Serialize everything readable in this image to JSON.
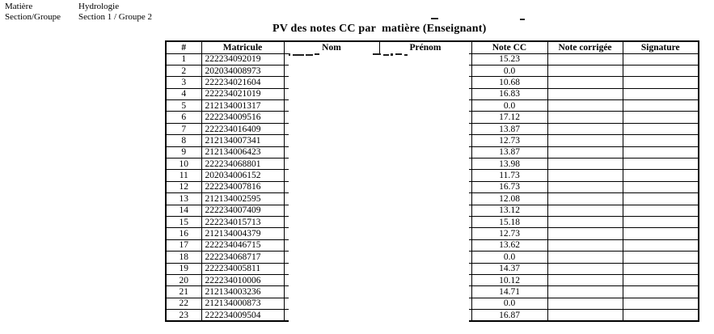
{
  "info": {
    "matiere_label": "Matière",
    "matiere_value": "Hydrologie",
    "section_label": "Section/Groupe",
    "section_value": "Section 1 / Groupe 2"
  },
  "title": "PV des notes CC par  matière (Enseignant)",
  "table": {
    "headers": [
      "#",
      "Matricule",
      "Nom",
      "Prénom",
      "Note CC",
      "Note corrigée",
      "Signature"
    ],
    "rows": [
      {
        "n": "1",
        "matricule": "222234092019",
        "nom": "",
        "prenom": "",
        "note_cc": "15.23",
        "note_corrigee": "",
        "signature": ""
      },
      {
        "n": "2",
        "matricule": "202034008973",
        "nom": "",
        "prenom": "",
        "note_cc": "0.0",
        "note_corrigee": "",
        "signature": ""
      },
      {
        "n": "3",
        "matricule": "222234021604",
        "nom": "",
        "prenom": "",
        "note_cc": "10.68",
        "note_corrigee": "",
        "signature": ""
      },
      {
        "n": "4",
        "matricule": "222234021019",
        "nom": "",
        "prenom": "",
        "note_cc": "16.83",
        "note_corrigee": "",
        "signature": ""
      },
      {
        "n": "5",
        "matricule": "212134001317",
        "nom": "",
        "prenom": "",
        "note_cc": "0.0",
        "note_corrigee": "",
        "signature": ""
      },
      {
        "n": "6",
        "matricule": "222234009516",
        "nom": "",
        "prenom": "",
        "note_cc": "17.12",
        "note_corrigee": "",
        "signature": ""
      },
      {
        "n": "7",
        "matricule": "222234016409",
        "nom": "",
        "prenom": "",
        "note_cc": "13.87",
        "note_corrigee": "",
        "signature": ""
      },
      {
        "n": "8",
        "matricule": "212134007341",
        "nom": "",
        "prenom": "",
        "note_cc": "12.73",
        "note_corrigee": "",
        "signature": ""
      },
      {
        "n": "9",
        "matricule": "212134006423",
        "nom": "",
        "prenom": "",
        "note_cc": "13.87",
        "note_corrigee": "",
        "signature": ""
      },
      {
        "n": "10",
        "matricule": "222234068801",
        "nom": "",
        "prenom": "",
        "note_cc": "13.98",
        "note_corrigee": "",
        "signature": ""
      },
      {
        "n": "11",
        "matricule": "202034006152",
        "nom": "",
        "prenom": "",
        "note_cc": "11.73",
        "note_corrigee": "",
        "signature": ""
      },
      {
        "n": "12",
        "matricule": "222234007816",
        "nom": "",
        "prenom": "",
        "note_cc": "16.73",
        "note_corrigee": "",
        "signature": ""
      },
      {
        "n": "13",
        "matricule": "212134002595",
        "nom": "",
        "prenom": "",
        "note_cc": "12.08",
        "note_corrigee": "",
        "signature": ""
      },
      {
        "n": "14",
        "matricule": "222234007409",
        "nom": "",
        "prenom": "",
        "note_cc": "13.12",
        "note_corrigee": "",
        "signature": ""
      },
      {
        "n": "15",
        "matricule": "222234015713",
        "nom": "",
        "prenom": "",
        "note_cc": "15.18",
        "note_corrigee": "",
        "signature": ""
      },
      {
        "n": "16",
        "matricule": "212134004379",
        "nom": "",
        "prenom": "",
        "note_cc": "12.73",
        "note_corrigee": "",
        "signature": ""
      },
      {
        "n": "17",
        "matricule": "222234046715",
        "nom": "",
        "prenom": "",
        "note_cc": "13.62",
        "note_corrigee": "",
        "signature": ""
      },
      {
        "n": "18",
        "matricule": "222234068717",
        "nom": "",
        "prenom": "",
        "note_cc": "0.0",
        "note_corrigee": "",
        "signature": ""
      },
      {
        "n": "19",
        "matricule": "222234005811",
        "nom": "",
        "prenom": "",
        "note_cc": "14.37",
        "note_corrigee": "",
        "signature": ""
      },
      {
        "n": "20",
        "matricule": "222234010006",
        "nom": "",
        "prenom": "",
        "note_cc": "10.12",
        "note_corrigee": "",
        "signature": ""
      },
      {
        "n": "21",
        "matricule": "212134003236",
        "nom": "",
        "prenom": "",
        "note_cc": "14.71",
        "note_corrigee": "",
        "signature": ""
      },
      {
        "n": "22",
        "matricule": "212134000873",
        "nom": "",
        "prenom": "",
        "note_cc": "0.0",
        "note_corrigee": "",
        "signature": ""
      },
      {
        "n": "23",
        "matricule": "222234009504",
        "nom": "",
        "prenom": "",
        "note_cc": "16.87",
        "note_corrigee": "",
        "signature": ""
      }
    ]
  }
}
